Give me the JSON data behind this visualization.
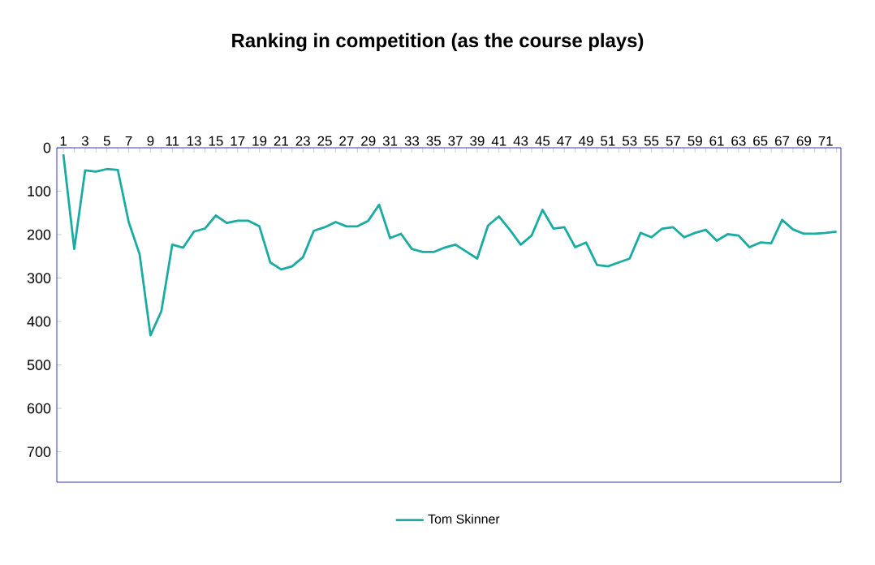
{
  "chart_data": {
    "type": "line",
    "title": "Ranking in competition (as the course plays)",
    "categories": [
      "1",
      null,
      "3",
      null,
      "5",
      null,
      "7",
      null,
      "9",
      null,
      "11",
      null,
      "13",
      null,
      "15",
      null,
      "17",
      null,
      "19",
      null,
      "21",
      null,
      "23",
      null,
      "25",
      null,
      "27",
      null,
      "29",
      null,
      "31",
      null,
      "33",
      null,
      "35",
      null,
      "37",
      null,
      "39",
      null,
      "41",
      null,
      "43",
      null,
      "45",
      null,
      "47",
      null,
      "49",
      null,
      "51",
      null,
      "53",
      null,
      "55",
      null,
      "57",
      null,
      "59",
      null,
      "61",
      null,
      "63",
      null,
      "65",
      null,
      "67",
      null,
      "69",
      null,
      "71",
      null
    ],
    "series": [
      {
        "name": "Tom Skinner",
        "color": "#1aaba3",
        "values": [
          15,
          233,
          52,
          55,
          49,
          51,
          171,
          245,
          432,
          376,
          223,
          230,
          193,
          186,
          156,
          173,
          168,
          168,
          181,
          264,
          280,
          273,
          252,
          191,
          183,
          171,
          181,
          181,
          168,
          131,
          208,
          198,
          233,
          240,
          240,
          230,
          223,
          239,
          255,
          179,
          158,
          189,
          223,
          202,
          143,
          186,
          183,
          229,
          218,
          270,
          273,
          264,
          255,
          196,
          206,
          186,
          183,
          206,
          196,
          189,
          214,
          199,
          202,
          229,
          218,
          220,
          166,
          188,
          198,
          198,
          196,
          193
        ]
      }
    ],
    "ylim": [
      770,
      0
    ],
    "yticks": [
      0,
      100,
      200,
      300,
      400,
      500,
      600,
      700
    ],
    "legend": "bottom"
  }
}
